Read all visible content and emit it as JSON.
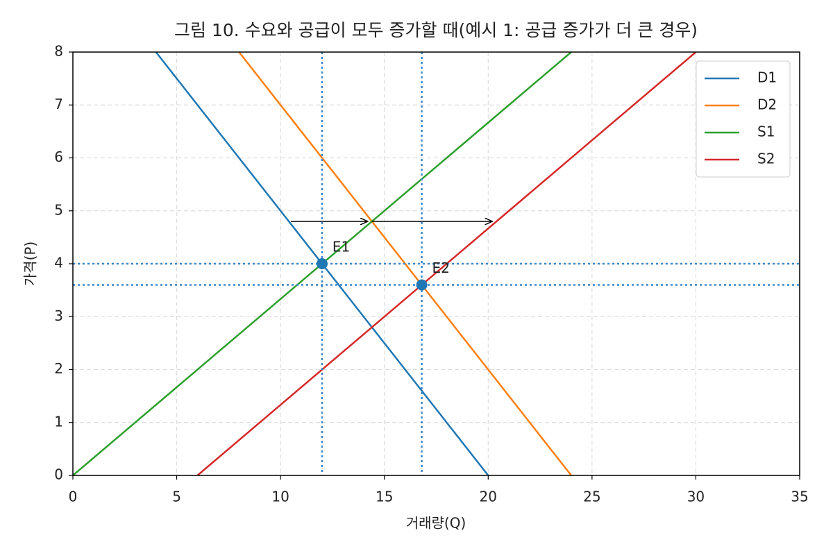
{
  "chart_data": {
    "type": "line",
    "title": "그림 10. 수요와 공급이 모두 증가할 때(예시 1: 공급 증가가 더 큰 경우)",
    "xlabel": "거래량(Q)",
    "ylabel": "가격(P)",
    "series": [
      {
        "name": "D1",
        "color": "#1f77b4",
        "x": [
          4,
          20
        ],
        "values": [
          8,
          0
        ]
      },
      {
        "name": "D2",
        "color": "#ff7f0e",
        "x": [
          8,
          24
        ],
        "values": [
          8,
          0
        ]
      },
      {
        "name": "S1",
        "color": "#2ca02c",
        "x": [
          0,
          24
        ],
        "values": [
          0,
          8
        ]
      },
      {
        "name": "S2",
        "color": "#d62728",
        "x": [
          6,
          30
        ],
        "values": [
          0,
          8
        ]
      }
    ],
    "points": [
      {
        "label": "E1",
        "x": 12,
        "y": 4,
        "label_x": 12.5,
        "label_y": 4.3
      },
      {
        "label": "E2",
        "x": 16.8,
        "y": 3.6,
        "label_x": 17.3,
        "label_y": 3.9
      }
    ],
    "vlines": [
      12,
      16.8
    ],
    "hlines": [
      4,
      3.6
    ],
    "arrows": [
      {
        "x": [
          10.5,
          14.2
        ],
        "y": 4.8
      },
      {
        "x": [
          14.4,
          20.2
        ],
        "y": 4.8
      }
    ],
    "xlim": [
      0,
      35
    ],
    "xticks": [
      0,
      5,
      10,
      15,
      20,
      25,
      30,
      35
    ],
    "ylim": [
      0,
      8
    ],
    "yticks": [
      0,
      1,
      2,
      3,
      4,
      5,
      6,
      7,
      8
    ],
    "grid": true,
    "legend": "upper right"
  }
}
